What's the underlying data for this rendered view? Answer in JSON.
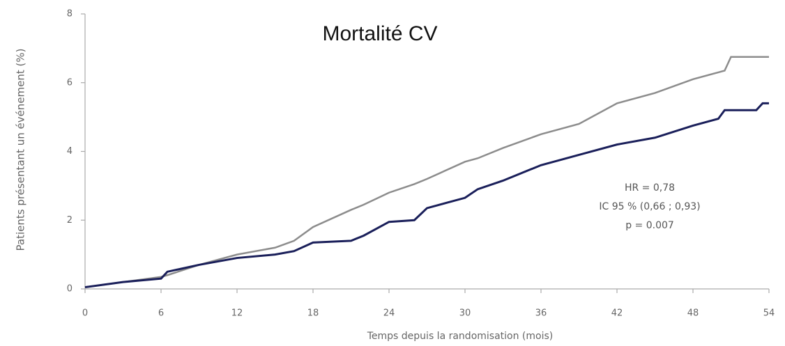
{
  "chart_data": {
    "type": "line",
    "title": "Mortalité CV",
    "y_label": "Patients présentant un événement (%)",
    "x_label": "Temps depuis la randomisation (mois)",
    "annotations": [
      "HR = 0,78",
      "IC 95 % (0,66 ; 0,93)",
      "p = 0.007"
    ],
    "x": [
      0,
      3,
      6,
      6.5,
      9,
      12,
      15,
      16.5,
      18,
      21,
      22,
      24,
      26,
      27,
      30,
      31,
      33,
      36,
      39,
      42,
      45,
      48,
      50,
      50.5,
      51,
      53,
      53.5,
      54
    ],
    "series": [
      {
        "color": "#8c8c8c",
        "values": [
          0.05,
          0.2,
          0.35,
          0.4,
          0.7,
          1.0,
          1.2,
          1.4,
          1.8,
          2.3,
          2.45,
          2.8,
          3.05,
          3.2,
          3.7,
          3.8,
          4.1,
          4.5,
          4.8,
          5.4,
          5.7,
          6.1,
          6.3,
          6.35,
          6.75,
          6.75,
          6.75,
          6.75
        ]
      },
      {
        "color": "#1a1f5a",
        "values": [
          0.05,
          0.2,
          0.3,
          0.5,
          0.7,
          0.9,
          1.0,
          1.1,
          1.35,
          1.4,
          1.55,
          1.95,
          2.0,
          2.35,
          2.65,
          2.9,
          3.15,
          3.6,
          3.9,
          4.2,
          4.4,
          4.75,
          4.95,
          5.2,
          5.2,
          5.2,
          5.4,
          5.4
        ]
      }
    ],
    "xlim": [
      0,
      54
    ],
    "xticks": [
      0,
      6,
      12,
      18,
      24,
      30,
      36,
      42,
      48,
      54
    ],
    "ylim": [
      0,
      8
    ],
    "yticks": [
      0,
      2,
      4,
      6,
      8
    ]
  }
}
